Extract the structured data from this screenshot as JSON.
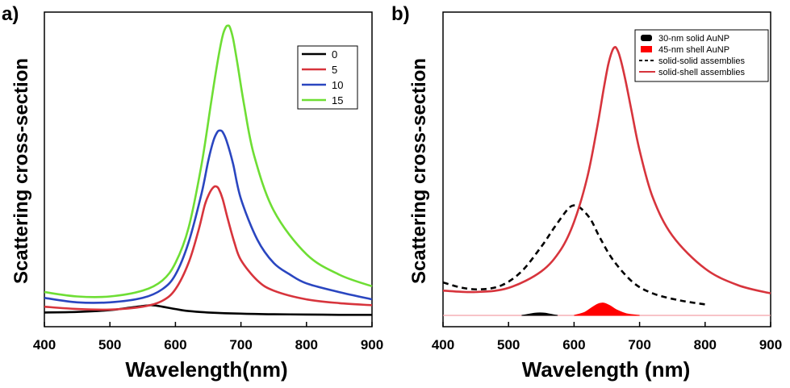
{
  "chart_data": [
    {
      "panel": "a)",
      "type": "line",
      "title": "",
      "xlabel": "Wavelength(nm)",
      "ylabel": "Scattering cross-section",
      "xlim": [
        400,
        900
      ],
      "ylim": [
        0,
        1
      ],
      "xticks": [
        "400",
        "500",
        "600",
        "700",
        "800",
        "900"
      ],
      "grid": false,
      "legend_position": "top-right",
      "series": [
        {
          "name": "0",
          "color": "#000000",
          "x": [
            400,
            450,
            500,
            525,
            550,
            565,
            580,
            600,
            620,
            650,
            700,
            750,
            800,
            850,
            900
          ],
          "y": [
            0.01,
            0.012,
            0.018,
            0.025,
            0.032,
            0.035,
            0.03,
            0.022,
            0.015,
            0.01,
            0.006,
            0.004,
            0.003,
            0.002,
            0.002
          ]
        },
        {
          "name": "5",
          "color": "#d7343c",
          "x": [
            400,
            450,
            500,
            550,
            580,
            600,
            620,
            635,
            645,
            652,
            658,
            662,
            666,
            672,
            680,
            690,
            700,
            725,
            750,
            800,
            850,
            900
          ],
          "y": [
            0.03,
            0.022,
            0.02,
            0.03,
            0.05,
            0.09,
            0.18,
            0.29,
            0.38,
            0.42,
            0.44,
            0.443,
            0.435,
            0.4,
            0.33,
            0.25,
            0.19,
            0.12,
            0.085,
            0.055,
            0.042,
            0.035
          ]
        },
        {
          "name": "10",
          "color": "#2a46c0",
          "x": [
            400,
            450,
            500,
            550,
            580,
            600,
            620,
            640,
            650,
            658,
            664,
            668,
            672,
            678,
            688,
            700,
            725,
            750,
            775,
            800,
            850,
            900
          ],
          "y": [
            0.06,
            0.045,
            0.045,
            0.06,
            0.09,
            0.14,
            0.25,
            0.42,
            0.53,
            0.6,
            0.63,
            0.635,
            0.63,
            0.6,
            0.52,
            0.4,
            0.26,
            0.18,
            0.14,
            0.11,
            0.08,
            0.055
          ]
        },
        {
          "name": "15",
          "color": "#6ede34",
          "x": [
            400,
            450,
            500,
            550,
            580,
            600,
            620,
            640,
            655,
            665,
            672,
            677,
            680,
            683,
            688,
            695,
            705,
            720,
            750,
            800,
            850,
            900
          ],
          "y": [
            0.08,
            0.065,
            0.065,
            0.085,
            0.12,
            0.18,
            0.3,
            0.52,
            0.74,
            0.88,
            0.96,
            0.99,
            0.995,
            0.99,
            0.95,
            0.86,
            0.72,
            0.55,
            0.36,
            0.21,
            0.14,
            0.1
          ]
        }
      ]
    },
    {
      "panel": "b)",
      "type": "line",
      "title": "",
      "xlabel": "Wavelength (nm)",
      "ylabel": "Scattering cross-section",
      "xlim": [
        400,
        900
      ],
      "ylim": [
        0,
        1
      ],
      "xticks": [
        "400",
        "500",
        "600",
        "700",
        "800",
        "900"
      ],
      "grid": false,
      "legend_position": "top-right",
      "series": [
        {
          "name": "30-nm solid AuNP",
          "color": "#000000",
          "style": "filled",
          "x": [
            520,
            530,
            540,
            548,
            556,
            565,
            575
          ],
          "y": [
            0.0,
            0.004,
            0.008,
            0.009,
            0.008,
            0.004,
            0.0
          ]
        },
        {
          "name": "45-nm shell AuNP",
          "color": "#ff0000",
          "style": "filled",
          "x": [
            600,
            615,
            625,
            635,
            642,
            648,
            655,
            665,
            680,
            700
          ],
          "y": [
            0.0,
            0.01,
            0.025,
            0.04,
            0.045,
            0.043,
            0.035,
            0.02,
            0.006,
            0.0
          ]
        },
        {
          "name": "solid-solid assemblies",
          "color": "#000000",
          "style": "dashed",
          "x": [
            400,
            430,
            460,
            490,
            520,
            550,
            570,
            590,
            600,
            610,
            625,
            640,
            660,
            690,
            720,
            760,
            800
          ],
          "y": [
            0.12,
            0.1,
            0.095,
            0.11,
            0.16,
            0.25,
            0.32,
            0.385,
            0.4,
            0.39,
            0.35,
            0.28,
            0.2,
            0.12,
            0.08,
            0.055,
            0.04
          ]
        },
        {
          "name": "solid-shell assemblies",
          "color": "#d7343c",
          "style": "solid",
          "x": [
            400,
            450,
            500,
            550,
            580,
            600,
            620,
            635,
            645,
            652,
            658,
            662,
            665,
            670,
            678,
            688,
            700,
            720,
            750,
            800,
            850,
            900
          ],
          "y": [
            0.09,
            0.085,
            0.1,
            0.16,
            0.24,
            0.34,
            0.5,
            0.68,
            0.82,
            0.91,
            0.96,
            0.975,
            0.97,
            0.94,
            0.86,
            0.74,
            0.6,
            0.43,
            0.29,
            0.17,
            0.11,
            0.08
          ]
        }
      ]
    }
  ]
}
